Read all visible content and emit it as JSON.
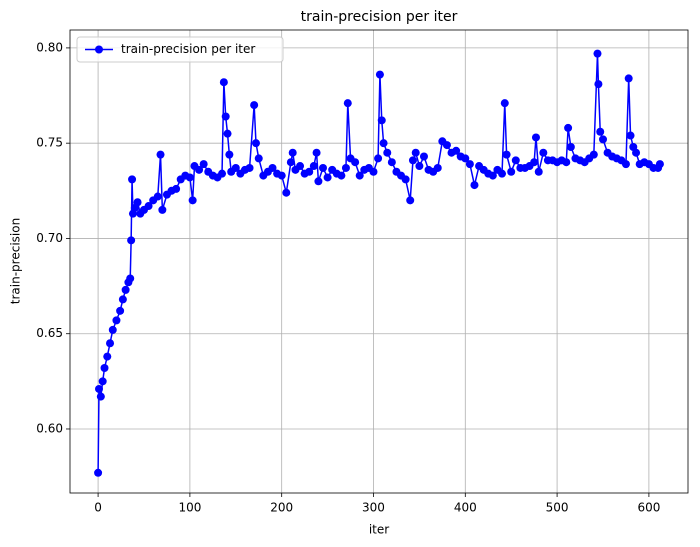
{
  "chart_data": {
    "type": "line",
    "title": "train-precision per iter",
    "xlabel": "iter",
    "ylabel": "train-precision",
    "x": [
      0,
      1,
      3,
      5,
      7,
      10,
      13,
      16,
      20,
      24,
      27,
      30,
      33,
      35,
      36,
      37,
      38,
      40,
      43,
      46,
      50,
      55,
      60,
      65,
      68,
      70,
      75,
      80,
      85,
      90,
      95,
      100,
      103,
      105,
      110,
      115,
      120,
      125,
      130,
      135,
      137,
      139,
      141,
      143,
      145,
      150,
      155,
      160,
      165,
      170,
      172,
      175,
      180,
      185,
      190,
      195,
      200,
      205,
      210,
      212,
      215,
      220,
      225,
      230,
      235,
      238,
      240,
      245,
      250,
      255,
      260,
      265,
      270,
      272,
      275,
      280,
      285,
      290,
      295,
      300,
      305,
      307,
      309,
      311,
      315,
      320,
      325,
      330,
      335,
      340,
      343,
      346,
      350,
      355,
      360,
      365,
      370,
      375,
      380,
      385,
      390,
      395,
      400,
      405,
      410,
      415,
      420,
      425,
      430,
      435,
      440,
      443,
      445,
      450,
      455,
      460,
      465,
      470,
      475,
      477,
      480,
      485,
      490,
      495,
      500,
      505,
      510,
      512,
      515,
      520,
      525,
      530,
      535,
      540,
      544,
      545,
      547,
      550,
      555,
      560,
      565,
      570,
      575,
      578,
      580,
      583,
      586,
      590,
      595,
      600,
      605,
      610,
      612
    ],
    "series": [
      {
        "name": "train-precision per iter",
        "color": "#0000ff",
        "values": [
          0.577,
          0.621,
          0.617,
          0.625,
          0.632,
          0.638,
          0.645,
          0.652,
          0.657,
          0.662,
          0.668,
          0.673,
          0.677,
          0.679,
          0.699,
          0.731,
          0.713,
          0.716,
          0.719,
          0.713,
          0.715,
          0.717,
          0.72,
          0.722,
          0.744,
          0.715,
          0.723,
          0.725,
          0.726,
          0.731,
          0.733,
          0.732,
          0.72,
          0.738,
          0.736,
          0.739,
          0.735,
          0.733,
          0.732,
          0.734,
          0.782,
          0.764,
          0.755,
          0.744,
          0.735,
          0.737,
          0.734,
          0.736,
          0.737,
          0.77,
          0.75,
          0.742,
          0.733,
          0.735,
          0.737,
          0.734,
          0.733,
          0.724,
          0.74,
          0.745,
          0.736,
          0.738,
          0.734,
          0.735,
          0.738,
          0.745,
          0.73,
          0.737,
          0.732,
          0.736,
          0.734,
          0.733,
          0.737,
          0.771,
          0.742,
          0.74,
          0.733,
          0.736,
          0.737,
          0.735,
          0.742,
          0.786,
          0.762,
          0.75,
          0.745,
          0.74,
          0.735,
          0.733,
          0.731,
          0.72,
          0.741,
          0.745,
          0.738,
          0.743,
          0.736,
          0.735,
          0.737,
          0.751,
          0.749,
          0.745,
          0.746,
          0.743,
          0.742,
          0.739,
          0.728,
          0.738,
          0.736,
          0.734,
          0.733,
          0.736,
          0.734,
          0.771,
          0.744,
          0.735,
          0.741,
          0.737,
          0.737,
          0.738,
          0.74,
          0.753,
          0.735,
          0.745,
          0.741,
          0.741,
          0.74,
          0.741,
          0.74,
          0.758,
          0.748,
          0.742,
          0.741,
          0.74,
          0.742,
          0.744,
          0.797,
          0.781,
          0.756,
          0.752,
          0.745,
          0.743,
          0.742,
          0.741,
          0.739,
          0.784,
          0.754,
          0.748,
          0.745,
          0.739,
          0.74,
          0.739,
          0.737,
          0.737,
          0.739
        ]
      }
    ],
    "xlim": [
      -30.6,
      642.6
    ],
    "ylim": [
      0.5664,
      0.8094
    ],
    "xticks": [
      0,
      100,
      200,
      300,
      400,
      500,
      600
    ],
    "yticks": [
      {
        "value": 0.6,
        "label": "0.60"
      },
      {
        "value": 0.65,
        "label": "0.65"
      },
      {
        "value": 0.7,
        "label": "0.70"
      },
      {
        "value": 0.75,
        "label": "0.75"
      },
      {
        "value": 0.8,
        "label": "0.80"
      }
    ],
    "grid": true,
    "legend": "upper left",
    "marker": "o"
  }
}
